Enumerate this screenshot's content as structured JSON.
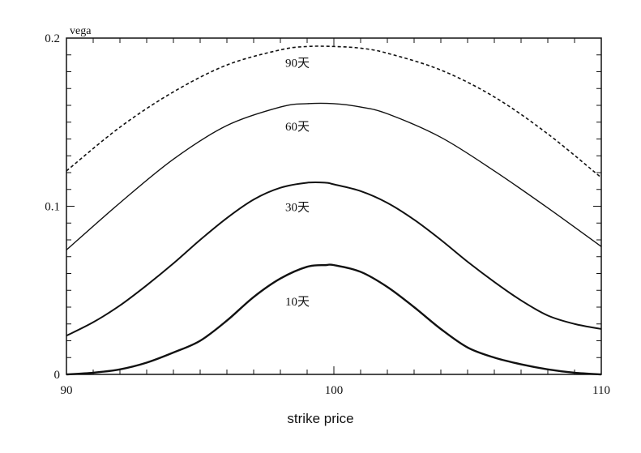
{
  "chart_data": {
    "type": "line",
    "xlabel": "strike price",
    "ylabel": "vega",
    "xlim": [
      90,
      110
    ],
    "ylim": [
      0,
      0.2
    ],
    "x_ticks": [
      90,
      100,
      110
    ],
    "y_ticks": [
      0,
      0.1,
      0.2
    ],
    "grid": false,
    "legend": "inline labels",
    "series": [
      {
        "name": "90天",
        "style": "dashed",
        "label_at": [
          100,
          0.183
        ],
        "x": [
          90,
          92,
          94,
          96,
          98,
          99,
          100,
          101,
          102,
          104,
          106,
          108,
          110
        ],
        "y": [
          0.121,
          0.147,
          0.168,
          0.184,
          0.193,
          0.195,
          0.195,
          0.194,
          0.191,
          0.181,
          0.165,
          0.143,
          0.117
        ]
      },
      {
        "name": "60天",
        "style": "solid",
        "label_at": [
          100,
          0.145
        ],
        "x": [
          90,
          92,
          94,
          96,
          98,
          99,
          100,
          101,
          102,
          104,
          106,
          108,
          110
        ],
        "y": [
          0.074,
          0.102,
          0.128,
          0.148,
          0.159,
          0.161,
          0.161,
          0.159,
          0.155,
          0.141,
          0.121,
          0.099,
          0.076
        ]
      },
      {
        "name": "30天",
        "style": "solid",
        "label_at": [
          100,
          0.097
        ],
        "x": [
          90,
          91,
          92,
          93,
          94,
          95,
          96,
          97,
          98,
          99,
          99.7,
          100,
          101,
          102,
          103,
          104,
          105,
          106,
          107,
          108,
          109,
          110
        ],
        "y": [
          0.023,
          0.031,
          0.041,
          0.053,
          0.066,
          0.08,
          0.093,
          0.104,
          0.111,
          0.114,
          0.114,
          0.113,
          0.109,
          0.102,
          0.092,
          0.08,
          0.067,
          0.055,
          0.044,
          0.035,
          0.03,
          0.027
        ]
      },
      {
        "name": "10天",
        "style": "solid",
        "label_at": [
          100,
          0.041
        ],
        "x": [
          90,
          91,
          92,
          93,
          94,
          95,
          96,
          97,
          98,
          99,
          99.7,
          100,
          101,
          102,
          103,
          104,
          105,
          106,
          107,
          108,
          109,
          110
        ],
        "y": [
          0.0,
          0.001,
          0.003,
          0.007,
          0.013,
          0.02,
          0.032,
          0.046,
          0.057,
          0.064,
          0.065,
          0.065,
          0.061,
          0.052,
          0.04,
          0.027,
          0.016,
          0.01,
          0.006,
          0.003,
          0.001,
          0.0
        ]
      }
    ]
  }
}
